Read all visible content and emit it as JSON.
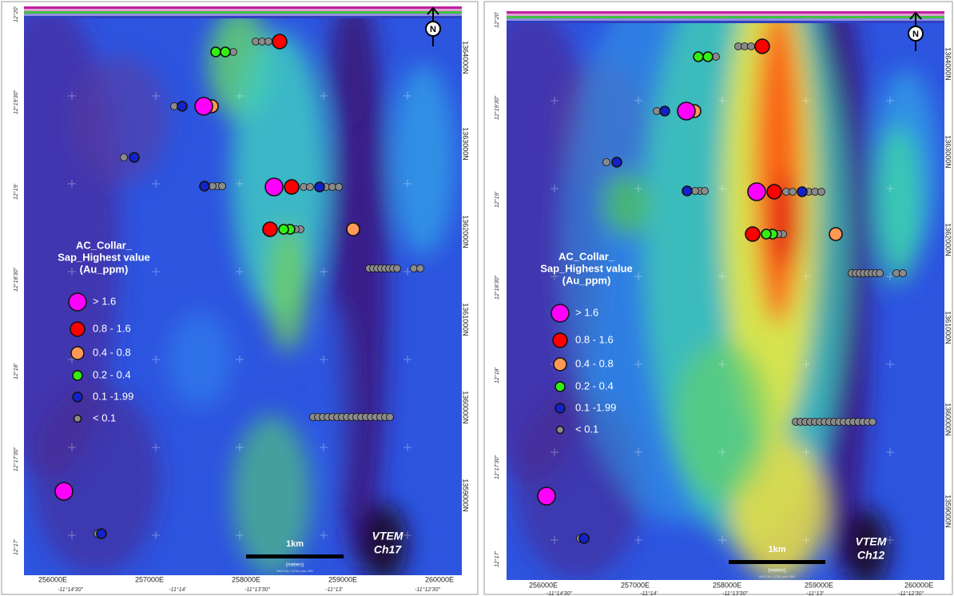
{
  "panels": [
    {
      "channel": [
        "VTEM",
        "Ch17"
      ]
    },
    {
      "channel": [
        "VTEM",
        "Ch12"
      ]
    }
  ],
  "legend": {
    "title": [
      "AC_Collar_",
      "Sap_Highest value",
      "(Au_ppm)"
    ],
    "items": [
      {
        "label": "> 1.6",
        "color": "#ff00ff"
      },
      {
        "label": "0.8 - 1.6",
        "color": "#ff0000"
      },
      {
        "label": "0.4 - 0.8",
        "color": "#ff9955"
      },
      {
        "label": "0.2  - 0.4",
        "color": "#33ee11"
      },
      {
        "label": "0.1 -1.99",
        "color": "#1122cc"
      },
      {
        "label": "< 0.1",
        "color": "#8a8a8a"
      }
    ]
  },
  "eastings": [
    "256000E",
    "257000E",
    "258000E",
    "259000E",
    "260000E"
  ],
  "longitudes": [
    "-11°14'30\"",
    "-11°14'",
    "-11°13'30\"",
    "-11°13'",
    "-11°12'30\""
  ],
  "northings": [
    "1364000N",
    "1363000N",
    "1362000N",
    "1361000N",
    "1360000N",
    "1359000N"
  ],
  "latitudes": [
    "12°20'",
    "12°19'30\"",
    "12°19'",
    "12°18'30\"",
    "12°18'",
    "12°17'30\"",
    "12°17'"
  ],
  "scale_label": "1km",
  "scale_unit": "(meters)",
  "projection": "WGS 84 / UTM zone 29N",
  "north": "N"
}
